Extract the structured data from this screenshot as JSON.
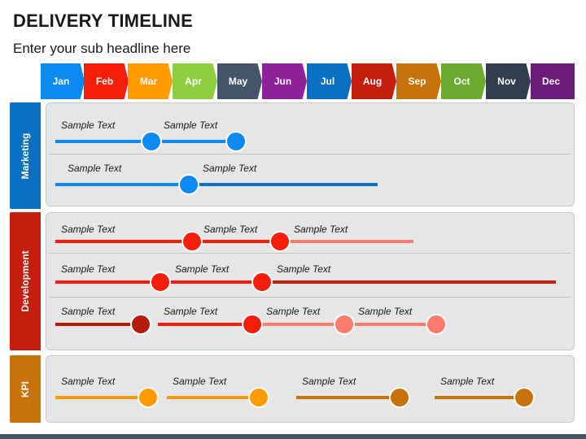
{
  "header": {
    "title": "DELIVERY TIMELINE",
    "subtitle": "Enter your sub headline here"
  },
  "months": [
    {
      "label": "Jan",
      "color": "#0d8af2"
    },
    {
      "label": "Feb",
      "color": "#f41e0a"
    },
    {
      "label": "Mar",
      "color": "#ff9a00"
    },
    {
      "label": "Apr",
      "color": "#8fce3e"
    },
    {
      "label": "May",
      "color": "#44546a"
    },
    {
      "label": "Jun",
      "color": "#8e2198"
    },
    {
      "label": "Jul",
      "color": "#0a70c3"
    },
    {
      "label": "Aug",
      "color": "#c51e0e"
    },
    {
      "label": "Sep",
      "color": "#c8720b"
    },
    {
      "label": "Oct",
      "color": "#6aaa2e"
    },
    {
      "label": "Nov",
      "color": "#323e4f"
    },
    {
      "label": "Dec",
      "color": "#6b1b78"
    }
  ],
  "categories": [
    {
      "label": "Marketing",
      "color": "#0a70c3"
    },
    {
      "label": "Development",
      "color": "#c51e0e"
    },
    {
      "label": "KPI",
      "color": "#c8720b"
    }
  ],
  "milestone_label": "Sample Text",
  "colors": {
    "blue": "#0d8af2",
    "dark_blue": "#0a70c3",
    "red": "#f41e0a",
    "dark_red": "#c51e0e",
    "salmon": "#ff7b6b",
    "deep_red": "#b51b0b",
    "orange": "#ff9a00",
    "brown": "#c8720b"
  }
}
